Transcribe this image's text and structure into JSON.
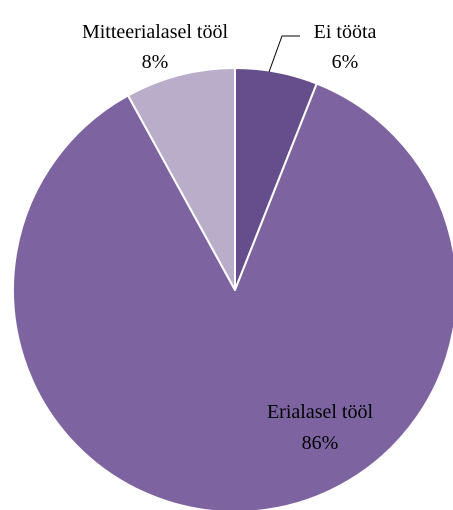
{
  "chart_data": {
    "type": "pie",
    "title": "",
    "start_angle_deg": 0,
    "direction": "clockwise",
    "slices": [
      {
        "label": "Ei tööta",
        "value": 6,
        "value_label": "6%",
        "color": "#664e8c"
      },
      {
        "label": "Erialasel tööl",
        "value": 86,
        "value_label": "86%",
        "color": "#7e63a1"
      },
      {
        "label": "Mitteerialasel tööl",
        "value": 8,
        "value_label": "8%",
        "color": "#b9adc9"
      }
    ],
    "slice_border_color": "#ffffff",
    "legend": "none"
  }
}
